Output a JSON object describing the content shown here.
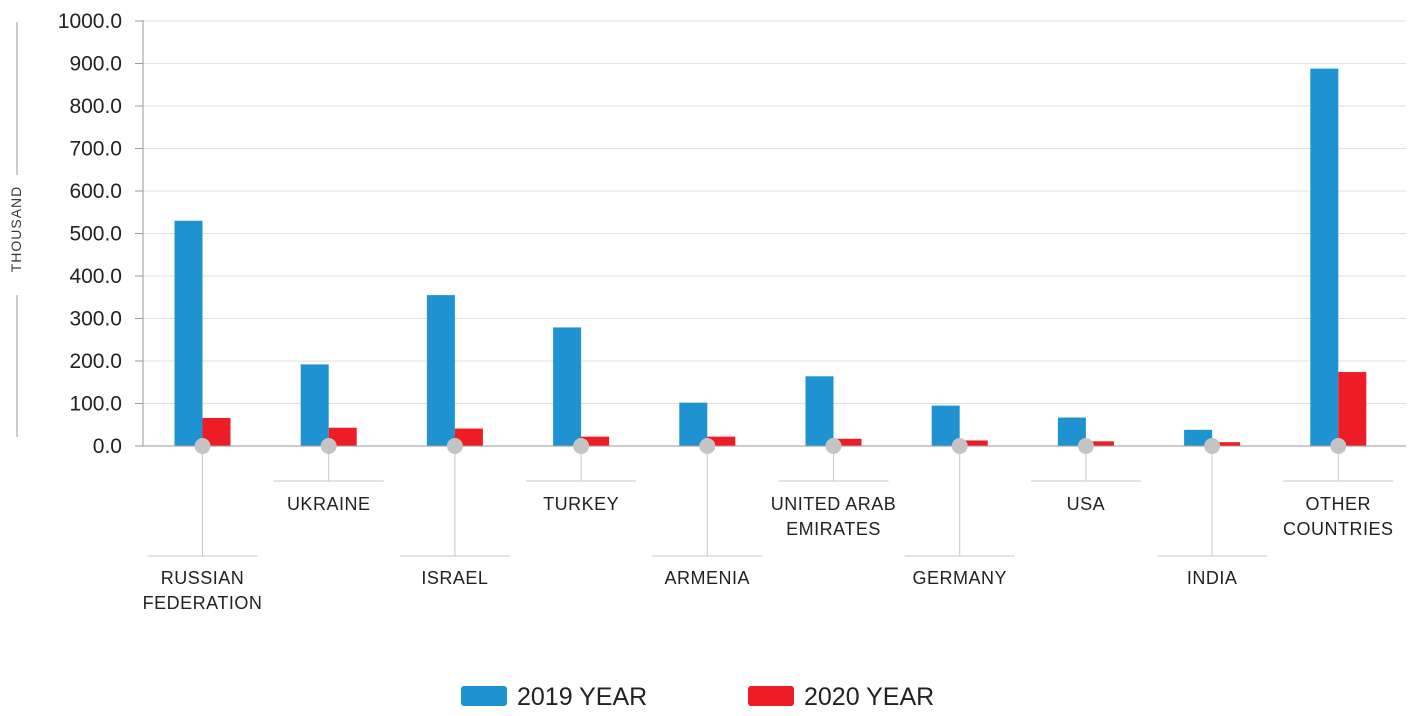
{
  "chart_data": {
    "type": "bar",
    "ylabel": "THOUSAND",
    "ylim": [
      0,
      1000
    ],
    "ytick_step": 100,
    "ytick_labels": [
      "0.0",
      "100.0",
      "200.0",
      "300.0",
      "400.0",
      "500.0",
      "600.0",
      "700.0",
      "800.0",
      "900.0",
      "1000.0"
    ],
    "categories": [
      [
        "RUSSIAN",
        "FEDERATION"
      ],
      [
        "UKRAINE"
      ],
      [
        "ISRAEL"
      ],
      [
        "TURKEY"
      ],
      [
        "ARMENIA"
      ],
      [
        "UNITED ARAB",
        "EMIRATES"
      ],
      [
        "GERMANY"
      ],
      [
        "USA"
      ],
      [
        "INDIA"
      ],
      [
        "OTHER",
        "COUNTRIES"
      ]
    ],
    "series": [
      {
        "name": "2019 YEAR",
        "color": "#1f93d2",
        "values": [
          530,
          192,
          355,
          279,
          102,
          164,
          95,
          67,
          38,
          888
        ]
      },
      {
        "name": "2020 YEAR",
        "color": "#ee1c25",
        "values": [
          66,
          43,
          41,
          22,
          22,
          17,
          13,
          11,
          9,
          174
        ]
      }
    ],
    "grid": true,
    "legend_position": "bottom-center"
  }
}
